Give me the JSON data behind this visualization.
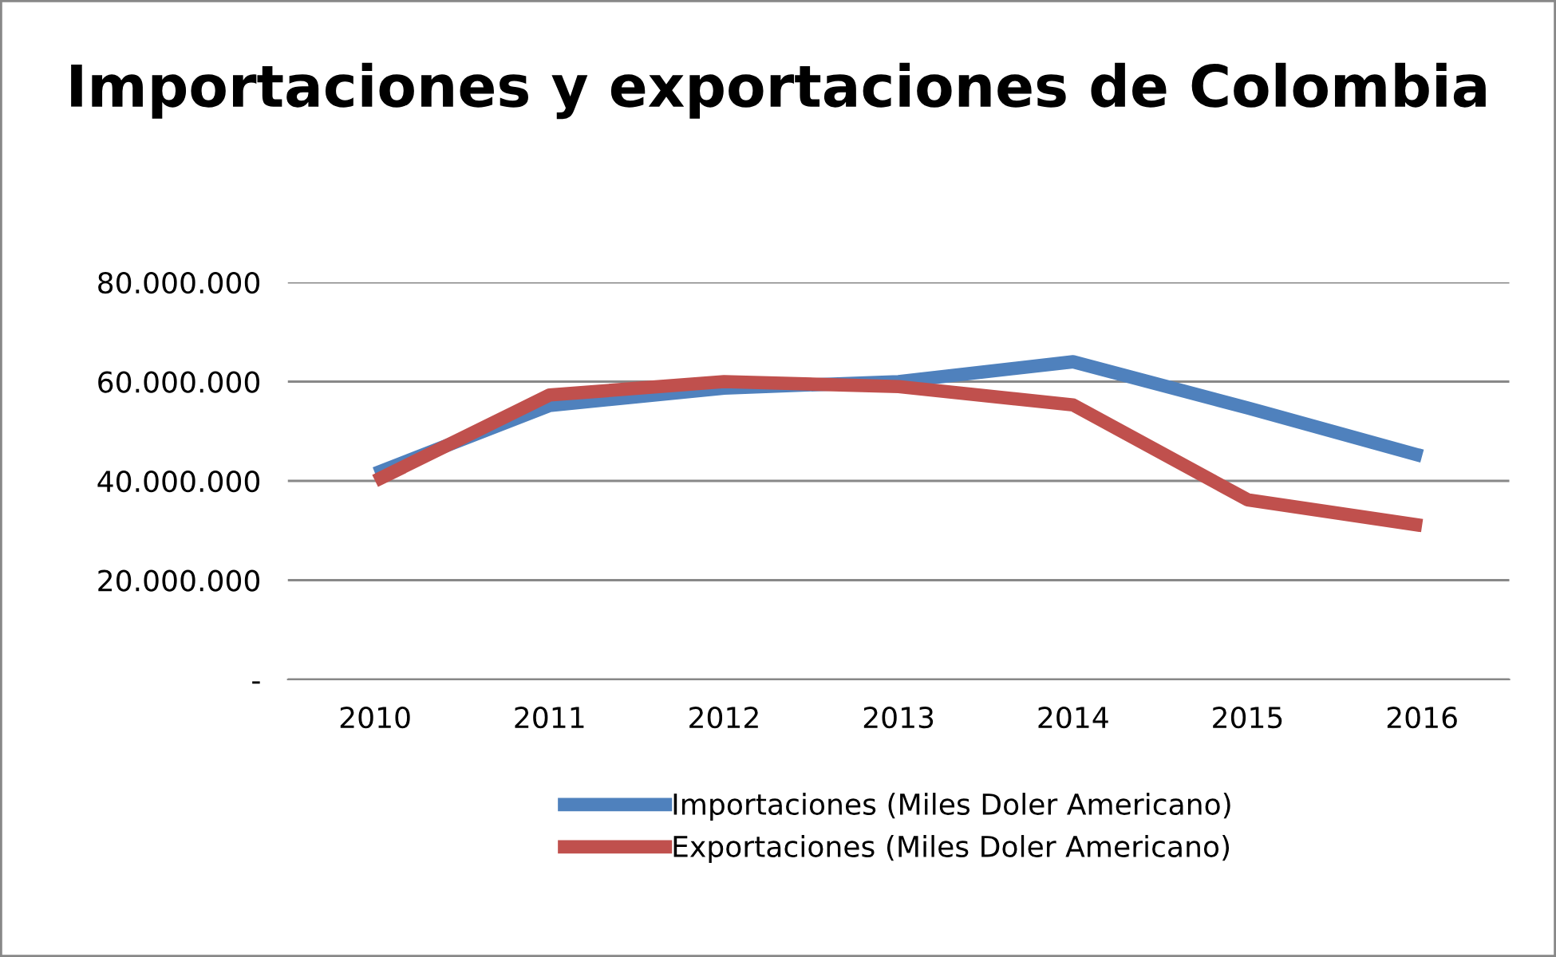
{
  "chart_data": {
    "type": "line",
    "title": "Importaciones y exportaciones de Colombia",
    "categories": [
      "2010",
      "2011",
      "2012",
      "2013",
      "2014",
      "2015",
      "2016"
    ],
    "series": [
      {
        "name": "Importaciones (Miles Doler Americano)",
        "color": "#4f81bd",
        "values": [
          41500000,
          55200000,
          58700000,
          60000000,
          64000000,
          54700000,
          45000000
        ]
      },
      {
        "name": "Exportaciones (Miles Doler Americano)",
        "color": "#c0504d",
        "values": [
          40000000,
          57300000,
          60000000,
          59000000,
          55300000,
          36200000,
          31000000
        ]
      }
    ],
    "ylim": [
      0,
      80000000
    ],
    "yticks": [
      {
        "value": 0,
        "label": "-"
      },
      {
        "value": 20000000,
        "label": "20.000.000"
      },
      {
        "value": 40000000,
        "label": "40.000.000"
      },
      {
        "value": 60000000,
        "label": "60.000.000"
      },
      {
        "value": 80000000,
        "label": "80.000.000"
      }
    ],
    "grid": "y",
    "legend": "bottom",
    "marker": "none",
    "line_style": "solid"
  }
}
